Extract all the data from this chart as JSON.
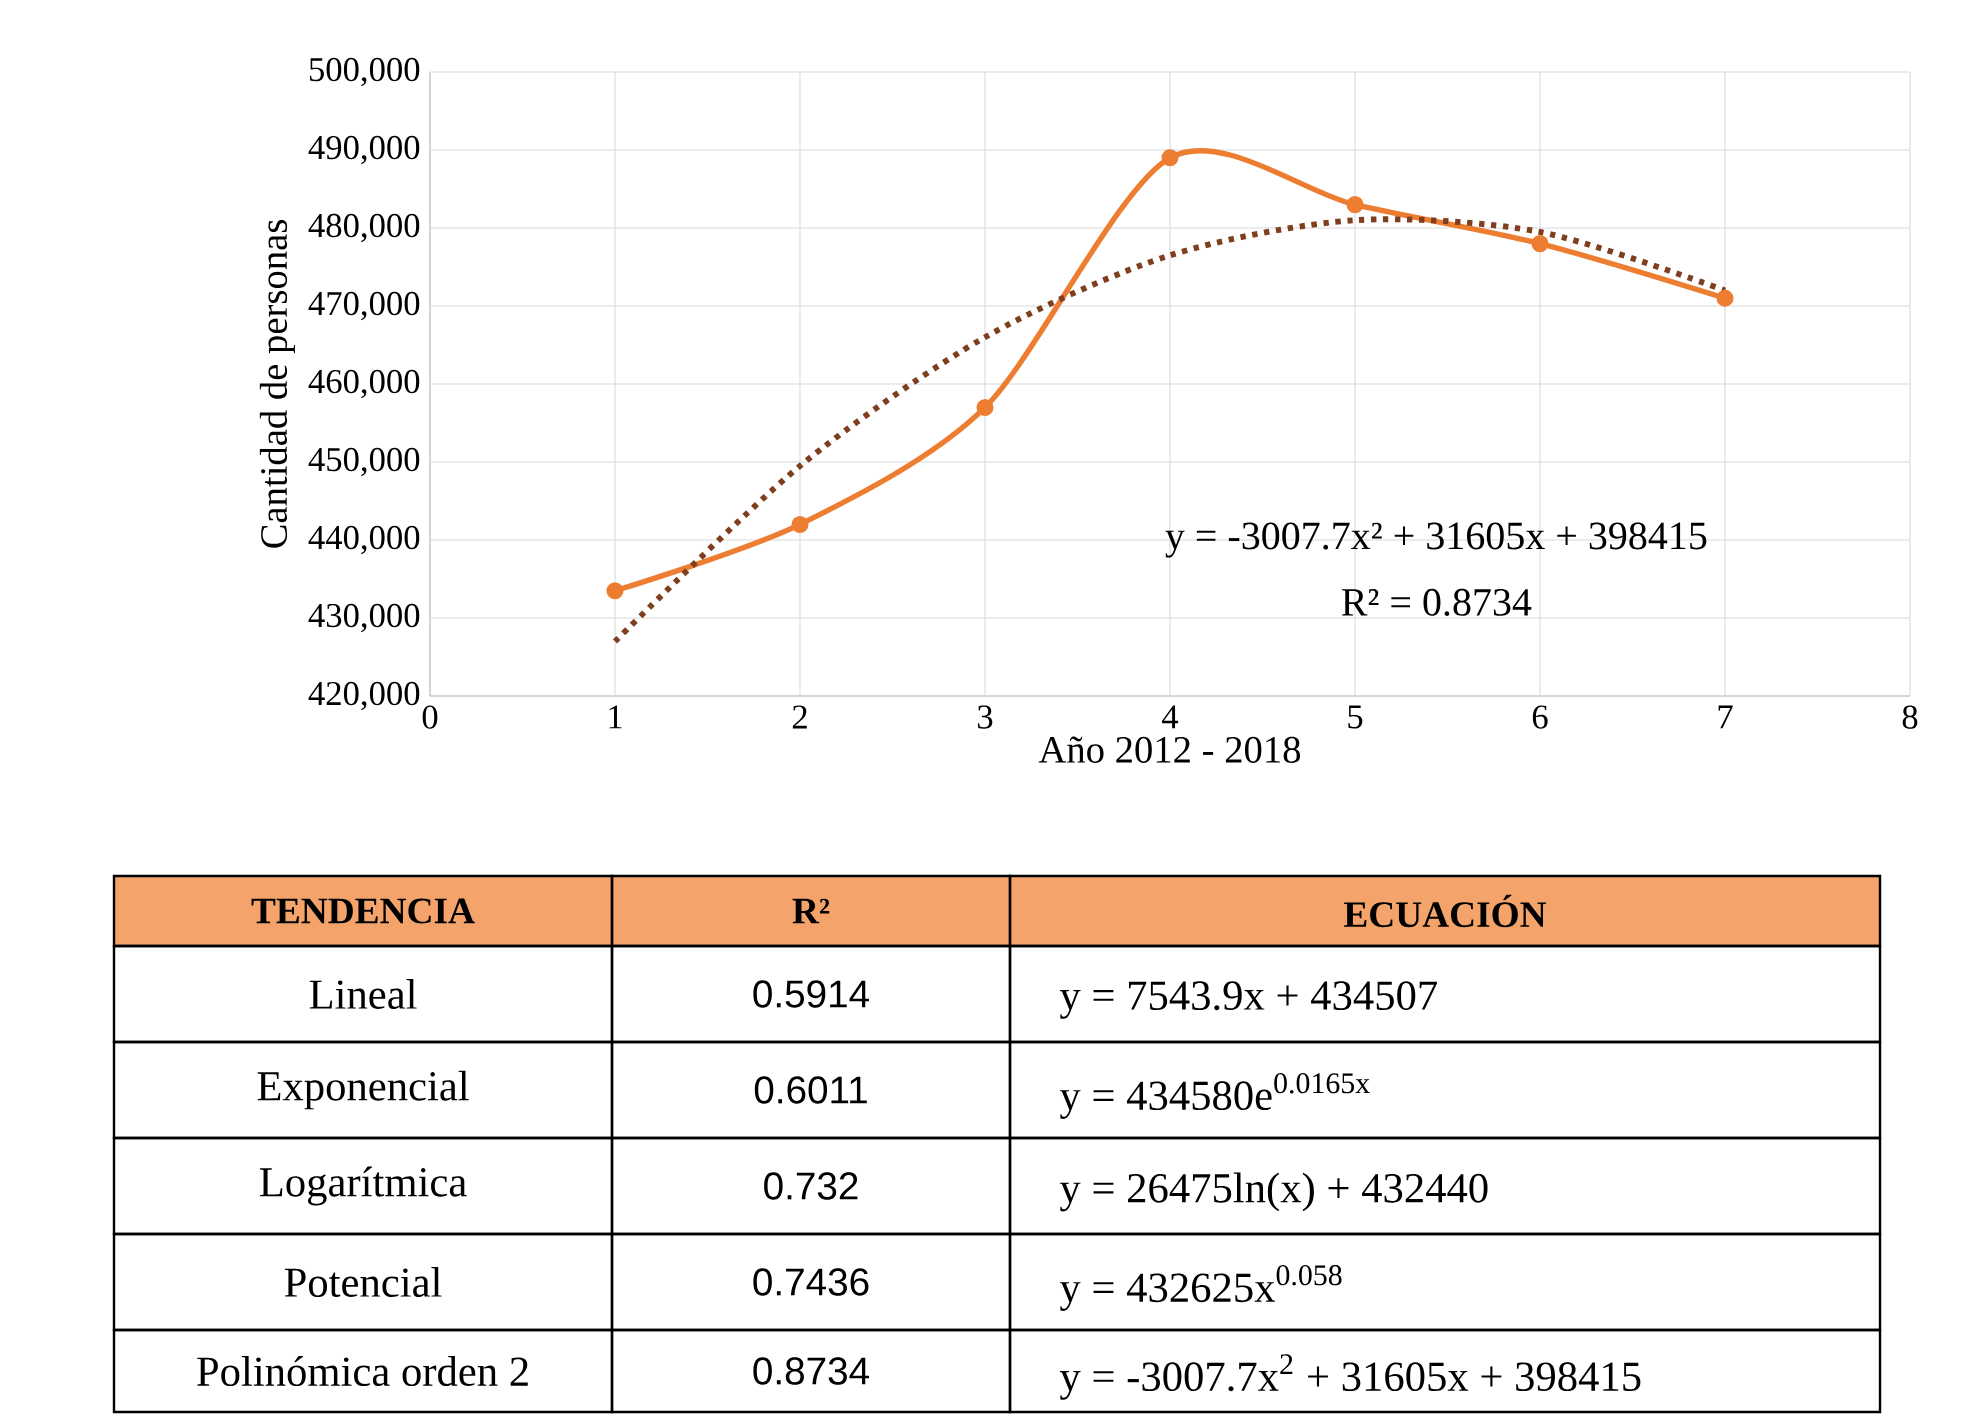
{
  "chart_data": {
    "type": "line",
    "xlabel": "Año 2012 - 2018",
    "ylabel": "Cantidad de personas",
    "x": [
      1,
      2,
      3,
      4,
      5,
      6,
      7
    ],
    "series": [
      {
        "color": "#ed7d31",
        "values": [
          433500,
          442000,
          457000,
          489000,
          483000,
          478000,
          471000
        ],
        "marker": "circle",
        "line_style": "solid"
      },
      {
        "type": "line",
        "color": "#7f3f1f",
        "x": [
          1,
          2,
          3,
          4,
          5,
          6,
          7
        ],
        "values": [
          427000,
          449500,
          466000,
          476500,
          481000,
          479500,
          472000
        ],
        "marker": "none",
        "line_style": "dotted"
      }
    ],
    "xlim": [
      0,
      8
    ],
    "xticks": [
      0,
      1,
      2,
      3,
      4,
      5,
      6,
      7,
      8
    ],
    "ylim": [
      420000,
      500000
    ],
    "yticks": [
      {
        "value": 420000,
        "label": "420,000"
      },
      {
        "value": 430000,
        "label": "430,000"
      },
      {
        "value": 440000,
        "label": "440,000"
      },
      {
        "value": 450000,
        "label": "450,000"
      },
      {
        "value": 460000,
        "label": "460,000"
      },
      {
        "value": 470000,
        "label": "470,000"
      },
      {
        "value": 480000,
        "label": "480,000"
      },
      {
        "value": 490000,
        "label": "490,000"
      },
      {
        "value": 500000,
        "label": "500,000"
      }
    ],
    "grid": true,
    "annotations": [
      "y = -3007.7x² + 31605x + 398415",
      "R² = 0.8734",
      "TENDENCIA",
      "R²",
      "ECUACIÓN",
      "Lineal",
      "0.5914",
      "y = 7543.9x + 434507",
      "Exponencial",
      "0.6011",
      "y = 434580e$^{0.0165x}$",
      "Logarítmica",
      "0.732",
      "y = 26475ln(x) + 432440",
      "Potencial",
      "0.7436",
      "y = 432625x$^{0.058}$",
      "Polinómica orden 2",
      "0.8734",
      "y = -3007.7x$^{2}$ + 31605x + 398415"
    ]
  }
}
